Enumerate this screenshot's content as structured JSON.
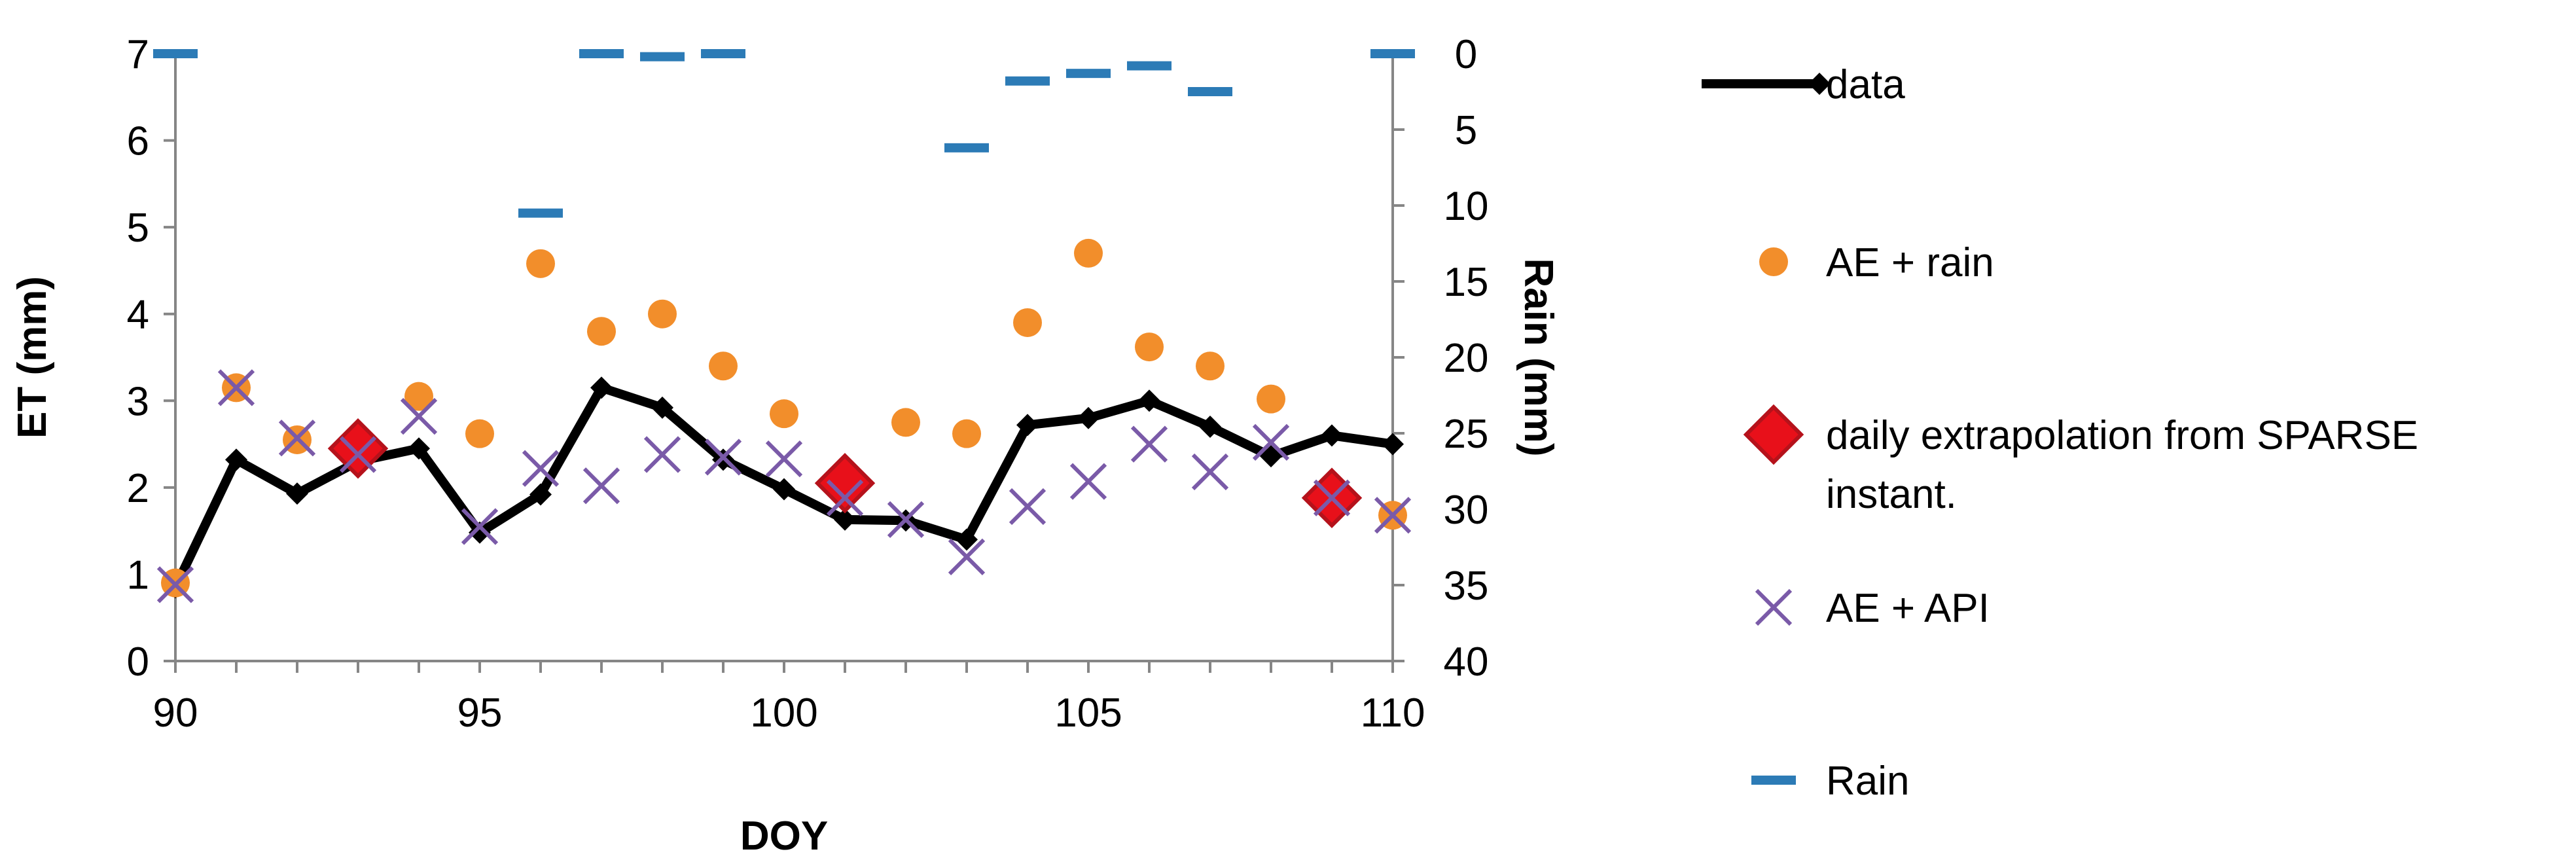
{
  "chart_data": {
    "type": "line",
    "title": "",
    "xlabel": "DOY",
    "ylabel": "ET (mm)",
    "y2label": "Rain (mm)",
    "xlim": [
      90,
      110
    ],
    "ylim": [
      0,
      7
    ],
    "y2lim": [
      0,
      40
    ],
    "y2_inverted": true,
    "x_ticks": [
      "90",
      "95",
      "100",
      "105",
      "110"
    ],
    "y_ticks": [
      "0",
      "1",
      "2",
      "3",
      "4",
      "5",
      "6",
      "7"
    ],
    "y2_ticks": [
      "0",
      "5",
      "10",
      "15",
      "20",
      "25",
      "30",
      "35",
      "40"
    ],
    "grid": false,
    "legend_position": "right",
    "series": [
      {
        "name": "data",
        "kind": "line-diamond",
        "color": "#000000",
        "x": [
          90,
          91,
          92,
          93,
          94,
          95,
          96,
          97,
          98,
          99,
          100,
          101,
          102,
          103,
          104,
          105,
          106,
          107,
          108,
          109,
          110
        ],
        "y": [
          0.85,
          2.32,
          1.93,
          2.3,
          2.45,
          1.48,
          1.92,
          3.15,
          2.92,
          2.32,
          1.98,
          1.63,
          1.62,
          1.4,
          2.72,
          2.8,
          3.0,
          2.7,
          2.36,
          2.6,
          2.5
        ]
      },
      {
        "name": "AE + rain",
        "kind": "circle",
        "color": "#F28E2B",
        "x": [
          90,
          91,
          92,
          93,
          94,
          95,
          96,
          97,
          98,
          99,
          100,
          101,
          102,
          103,
          104,
          105,
          106,
          107,
          108,
          109,
          110
        ],
        "y": [
          0.9,
          3.15,
          2.55,
          2.35,
          3.05,
          2.62,
          4.58,
          3.8,
          4.0,
          3.4,
          2.85,
          2.1,
          2.75,
          2.62,
          3.9,
          4.7,
          3.62,
          3.4,
          3.02,
          1.88,
          1.68
        ]
      },
      {
        "name": "daily extrapolation from SPARSE instant.",
        "kind": "diamond",
        "color": "#E8101A",
        "x": [
          93,
          101,
          109
        ],
        "y": [
          2.45,
          2.05,
          1.88
        ]
      },
      {
        "name": "AE + API",
        "kind": "cross",
        "color": "#7A5AA8",
        "x": [
          90,
          91,
          92,
          93,
          94,
          95,
          96,
          97,
          98,
          99,
          100,
          101,
          102,
          103,
          104,
          105,
          106,
          107,
          108,
          109,
          110
        ],
        "y": [
          0.88,
          3.15,
          2.57,
          2.38,
          2.82,
          1.55,
          2.22,
          2.02,
          2.38,
          2.35,
          2.33,
          1.88,
          1.63,
          1.2,
          1.78,
          2.07,
          2.5,
          2.18,
          2.52,
          1.88,
          1.68
        ]
      },
      {
        "name": "Rain",
        "kind": "dash",
        "axis": "y2",
        "color": "#2C7BB6",
        "x": [
          90,
          96,
          97,
          98,
          99,
          103,
          104,
          105,
          106,
          107,
          110
        ],
        "y": [
          0,
          10.5,
          0,
          0.2,
          0,
          6.2,
          1.8,
          1.3,
          0.8,
          2.5,
          0
        ]
      }
    ]
  }
}
